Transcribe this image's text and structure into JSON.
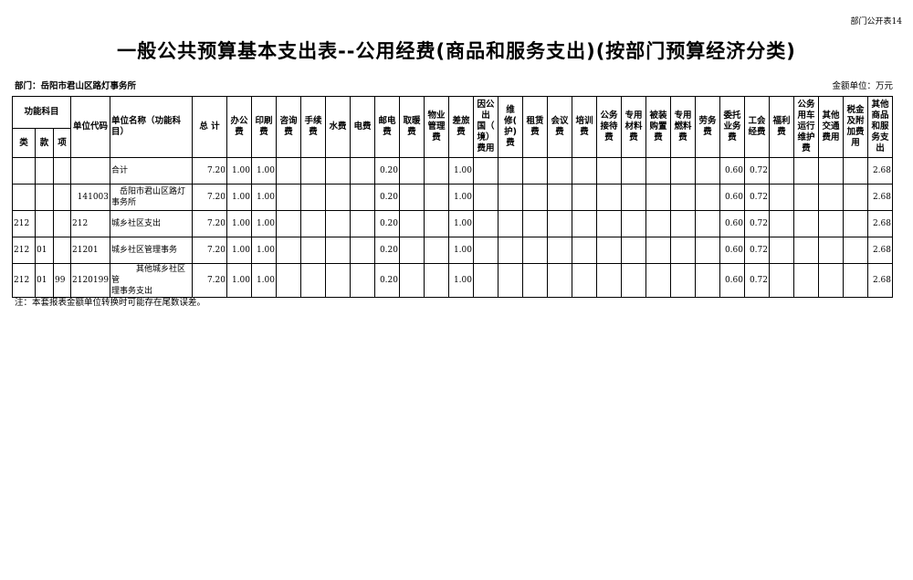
{
  "form_no": "部门公开表14",
  "title": "一般公共预算基本支出表--公用经费(商品和服务支出)(按部门预算经济分类)",
  "department": "部门：岳阳市君山区路灯事务所",
  "unit": "金额单位：万元",
  "header": {
    "func_group": "功能科目",
    "lei": "类",
    "kuan": "款",
    "xiang": "项",
    "code": "单位代码",
    "name": "单位名称（功能科\n目）",
    "total": "总 计",
    "columns": [
      "办公\n费",
      "印刷\n费",
      "咨询\n费",
      "手续\n费",
      "水费",
      "电费",
      "邮电\n费",
      "取暖\n费",
      "物业\n管理\n费",
      "差旅\n费",
      "因公\n出\n国（\n境）\n费用",
      "维\n修(\n护)\n费",
      "租赁\n费",
      "会议\n费",
      "培训\n费",
      "公务\n接待\n费",
      "专用\n材料\n费",
      "被装\n购置\n费",
      "专用\n燃料\n费",
      "劳务\n费",
      "委托\n业务\n费",
      "工会\n经费",
      "福利\n费",
      "公务\n用车\n运行\n维护\n费",
      "其他\n交通\n费用",
      "税金\n及附\n加费\n用",
      "其他\n商品\n和服\n务支\n出"
    ]
  },
  "rows": [
    {
      "lei": "",
      "kuan": "",
      "xiang": "",
      "code": "",
      "name": "合计",
      "total": "7.20",
      "values": [
        "1.00",
        "1.00",
        "",
        "",
        "",
        "",
        "0.20",
        "",
        "",
        "1.00",
        "",
        "",
        "",
        "",
        "",
        "",
        "",
        "",
        "",
        "",
        "0.60",
        "0.72",
        "",
        "",
        "",
        "",
        "2.68"
      ]
    },
    {
      "lei": "",
      "kuan": "",
      "xiang": "",
      "code": "141003",
      "name": "　岳阳市君山区路灯\n事务所",
      "total": "7.20",
      "values": [
        "1.00",
        "1.00",
        "",
        "",
        "",
        "",
        "0.20",
        "",
        "",
        "1.00",
        "",
        "",
        "",
        "",
        "",
        "",
        "",
        "",
        "",
        "",
        "0.60",
        "0.72",
        "",
        "",
        "",
        "",
        "2.68"
      ]
    },
    {
      "lei": "212",
      "kuan": "",
      "xiang": "",
      "code": "212",
      "name": "城乡社区支出",
      "total": "7.20",
      "values": [
        "1.00",
        "1.00",
        "",
        "",
        "",
        "",
        "0.20",
        "",
        "",
        "1.00",
        "",
        "",
        "",
        "",
        "",
        "",
        "",
        "",
        "",
        "",
        "0.60",
        "0.72",
        "",
        "",
        "",
        "",
        "2.68"
      ]
    },
    {
      "lei": "212",
      "kuan": "01",
      "xiang": "",
      "code": "21201",
      "name": "城乡社区管理事务",
      "total": "7.20",
      "values": [
        "1.00",
        "1.00",
        "",
        "",
        "",
        "",
        "0.20",
        "",
        "",
        "1.00",
        "",
        "",
        "",
        "",
        "",
        "",
        "",
        "",
        "",
        "",
        "0.60",
        "0.72",
        "",
        "",
        "",
        "",
        "2.68"
      ]
    },
    {
      "lei": "212",
      "kuan": "01",
      "xiang": "99",
      "code": "2120199",
      "name": "　　　其他城乡社区管\n理事务支出",
      "total": "7.20",
      "values": [
        "1.00",
        "1.00",
        "",
        "",
        "",
        "",
        "0.20",
        "",
        "",
        "1.00",
        "",
        "",
        "",
        "",
        "",
        "",
        "",
        "",
        "",
        "",
        "0.60",
        "0.72",
        "",
        "",
        "",
        "",
        "2.68"
      ]
    }
  ],
  "note": "注：本套报表金额单位转换时可能存在尾数误差。"
}
